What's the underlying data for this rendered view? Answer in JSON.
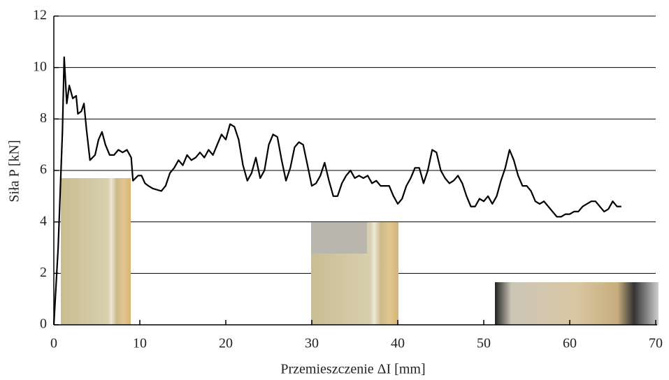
{
  "chart_data": {
    "type": "line",
    "xlabel": "Przemieszczenie ΔI [mm]",
    "ylabel": "Siła P [kN]",
    "xlim": [
      0,
      70
    ],
    "xticks": [
      0,
      10,
      20,
      30,
      40,
      50,
      60,
      70
    ],
    "ylim": [
      0,
      12
    ],
    "yticks": [
      0,
      2,
      4,
      6,
      8,
      10,
      12
    ],
    "grid": true,
    "series": [
      {
        "color": "#000000",
        "x": [
          0,
          0.5,
          1,
          1.2,
          1.5,
          1.8,
          2.2,
          2.6,
          2.8,
          3.2,
          3.5,
          3.8,
          4.2,
          4.8,
          5.2,
          5.6,
          6,
          6.5,
          7,
          7.5,
          8,
          8.5,
          9,
          9.2,
          9.8,
          10.2,
          10.6,
          11,
          11.5,
          12.5,
          13,
          13.5,
          14,
          14.5,
          15,
          15.5,
          16,
          16.5,
          17,
          17.5,
          18,
          18.5,
          19,
          19.5,
          20,
          20.5,
          21,
          21.5,
          22,
          22.5,
          23,
          23.5,
          24,
          24.5,
          25,
          25.5,
          26,
          26.5,
          27,
          27.5,
          28,
          28.5,
          29,
          29.5,
          30,
          30.5,
          31,
          31.5,
          32,
          32.5,
          33,
          33.5,
          34,
          34.5,
          35,
          35.5,
          36,
          36.5,
          37,
          37.5,
          38,
          38.5,
          39,
          39.5,
          40,
          40.5,
          41,
          41.5,
          42,
          42.5,
          43,
          43.5,
          44,
          44.5,
          45,
          45.5,
          46,
          46.5,
          47,
          47.5,
          48,
          48.5,
          49,
          49.5,
          50,
          50.5,
          51,
          51.5,
          52,
          52.5,
          53,
          53.5,
          54,
          54.5,
          55,
          55.5,
          56,
          56.5,
          57,
          57.5,
          58,
          58.5,
          59,
          59.5,
          60,
          60.5,
          61,
          61.5,
          62,
          62.5,
          63,
          63.5,
          64,
          64.5,
          65,
          65.5,
          66
        ],
        "values": [
          0,
          3,
          7.5,
          10.4,
          8.6,
          9.3,
          8.8,
          8.9,
          8.2,
          8.3,
          8.6,
          7.6,
          6.4,
          6.6,
          7.2,
          7.5,
          7.0,
          6.6,
          6.6,
          6.8,
          6.7,
          6.8,
          6.5,
          5.6,
          5.8,
          5.8,
          5.5,
          5.4,
          5.3,
          5.2,
          5.4,
          5.9,
          6.1,
          6.4,
          6.2,
          6.6,
          6.4,
          6.5,
          6.7,
          6.5,
          6.8,
          6.6,
          7.0,
          7.4,
          7.2,
          7.8,
          7.7,
          7.2,
          6.2,
          5.6,
          5.9,
          6.5,
          5.7,
          6.0,
          7.0,
          7.4,
          7.3,
          6.4,
          5.6,
          6.1,
          6.9,
          7.1,
          7.0,
          6.2,
          5.4,
          5.5,
          5.8,
          6.3,
          5.6,
          5.0,
          5.0,
          5.5,
          5.8,
          6.0,
          5.7,
          5.8,
          5.7,
          5.8,
          5.5,
          5.6,
          5.4,
          5.4,
          5.4,
          5.0,
          4.7,
          4.9,
          5.4,
          5.7,
          6.1,
          6.1,
          5.5,
          6.0,
          6.8,
          6.7,
          6.0,
          5.7,
          5.5,
          5.6,
          5.8,
          5.5,
          5.0,
          4.6,
          4.6,
          4.9,
          4.8,
          5.0,
          4.7,
          5.0,
          5.6,
          6.1,
          6.8,
          6.4,
          5.8,
          5.4,
          5.4,
          5.2,
          4.8,
          4.7,
          4.8,
          4.6,
          4.4,
          4.2,
          4.2,
          4.3,
          4.3,
          4.4,
          4.4,
          4.6,
          4.7,
          4.8,
          4.8,
          4.6,
          4.4,
          4.5,
          4.8,
          4.6,
          4.6
        ]
      }
    ]
  }
}
